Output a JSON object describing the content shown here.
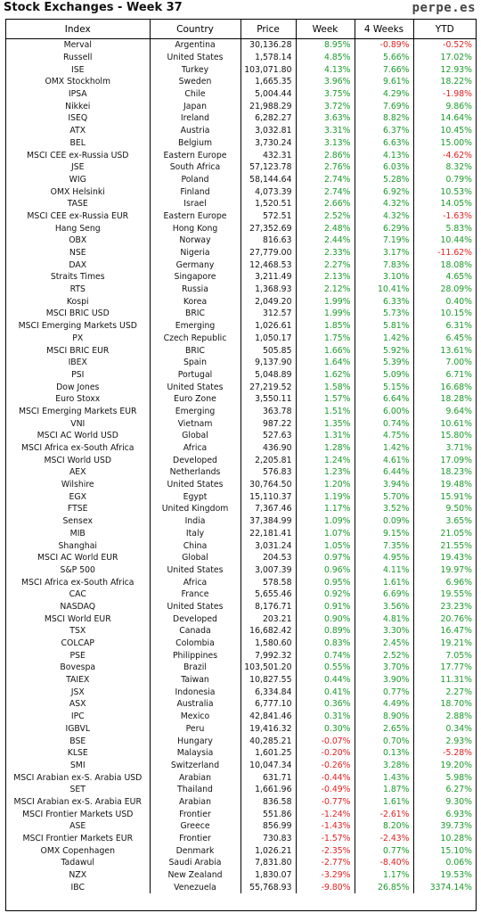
{
  "header": {
    "title": "Stock Exchanges - Week 37",
    "brand": "perpe.es"
  },
  "colors": {
    "positive": "#1a9b2a",
    "negative": "#e02020"
  },
  "table": {
    "columns": [
      "Index",
      "Country",
      "Price",
      "Week",
      "4 Weeks",
      "YTD"
    ],
    "rows": [
      [
        "Merval",
        "Argentina",
        "30,136.28",
        "8.95%",
        "-0.89%",
        "-0.52%"
      ],
      [
        "Russell",
        "United States",
        "1,578.14",
        "4.85%",
        "5.66%",
        "17.02%"
      ],
      [
        "ISE",
        "Turkey",
        "103,071.80",
        "4.13%",
        "7.66%",
        "12.93%"
      ],
      [
        "OMX Stockholm",
        "Sweden",
        "1,665.35",
        "3.96%",
        "9.61%",
        "18.22%"
      ],
      [
        "IPSA",
        "Chile",
        "5,004.44",
        "3.75%",
        "4.29%",
        "-1.98%"
      ],
      [
        "Nikkei",
        "Japan",
        "21,988.29",
        "3.72%",
        "7.69%",
        "9.86%"
      ],
      [
        "ISEQ",
        "Ireland",
        "6,282.27",
        "3.63%",
        "8.82%",
        "14.64%"
      ],
      [
        "ATX",
        "Austria",
        "3,032.81",
        "3.31%",
        "6.37%",
        "10.45%"
      ],
      [
        "BEL",
        "Belgium",
        "3,730.24",
        "3.13%",
        "6.63%",
        "15.00%"
      ],
      [
        "MSCI CEE ex-Russia USD",
        "Eastern Europe",
        "432.31",
        "2.86%",
        "4.13%",
        "-4.62%"
      ],
      [
        "JSE",
        "South Africa",
        "57,123.78",
        "2.76%",
        "6.03%",
        "8.32%"
      ],
      [
        "WIG",
        "Poland",
        "58,144.64",
        "2.74%",
        "5.28%",
        "0.79%"
      ],
      [
        "OMX Helsinki",
        "Finland",
        "4,073.39",
        "2.74%",
        "6.92%",
        "10.53%"
      ],
      [
        "TASE",
        "Israel",
        "1,520.51",
        "2.66%",
        "4.32%",
        "14.05%"
      ],
      [
        "MSCI CEE ex-Russia EUR",
        "Eastern Europe",
        "572.51",
        "2.52%",
        "4.32%",
        "-1.63%"
      ],
      [
        "Hang Seng",
        "Hong Kong",
        "27,352.69",
        "2.48%",
        "6.29%",
        "5.83%"
      ],
      [
        "OBX",
        "Norway",
        "816.63",
        "2.44%",
        "7.19%",
        "10.44%"
      ],
      [
        "NSE",
        "Nigeria",
        "27,779.00",
        "2.33%",
        "3.17%",
        "-11.62%"
      ],
      [
        "DAX",
        "Germany",
        "12,468.53",
        "2.27%",
        "7.83%",
        "18.08%"
      ],
      [
        "Straits Times",
        "Singapore",
        "3,211.49",
        "2.13%",
        "3.10%",
        "4.65%"
      ],
      [
        "RTS",
        "Russia",
        "1,368.93",
        "2.12%",
        "10.41%",
        "28.09%"
      ],
      [
        "Kospi",
        "Korea",
        "2,049.20",
        "1.99%",
        "6.33%",
        "0.40%"
      ],
      [
        "MSCI BRIC USD",
        "BRIC",
        "312.57",
        "1.99%",
        "5.73%",
        "10.15%"
      ],
      [
        "MSCI Emerging Markets USD",
        "Emerging",
        "1,026.61",
        "1.85%",
        "5.81%",
        "6.31%"
      ],
      [
        "PX",
        "Czech Republic",
        "1,050.17",
        "1.75%",
        "1.42%",
        "6.45%"
      ],
      [
        "MSCI BRIC EUR",
        "BRIC",
        "505.85",
        "1.66%",
        "5.92%",
        "13.61%"
      ],
      [
        "IBEX",
        "Spain",
        "9,137.90",
        "1.64%",
        "5.39%",
        "7.00%"
      ],
      [
        "PSI",
        "Portugal",
        "5,048.89",
        "1.62%",
        "5.09%",
        "6.71%"
      ],
      [
        "Dow Jones",
        "United States",
        "27,219.52",
        "1.58%",
        "5.15%",
        "16.68%"
      ],
      [
        "Euro Stoxx",
        "Euro Zone",
        "3,550.11",
        "1.57%",
        "6.64%",
        "18.28%"
      ],
      [
        "MSCI Emerging Markets EUR",
        "Emerging",
        "363.78",
        "1.51%",
        "6.00%",
        "9.64%"
      ],
      [
        "VNI",
        "Vietnam",
        "987.22",
        "1.35%",
        "0.74%",
        "10.61%"
      ],
      [
        "MSCI AC World USD",
        "Global",
        "527.63",
        "1.31%",
        "4.75%",
        "15.80%"
      ],
      [
        "MSCI Africa ex-South Africa",
        "Africa",
        "436.90",
        "1.28%",
        "1.42%",
        "3.71%"
      ],
      [
        "MSCI World USD",
        "Developed",
        "2,205.81",
        "1.24%",
        "4.61%",
        "17.09%"
      ],
      [
        "AEX",
        "Netherlands",
        "576.83",
        "1.23%",
        "6.44%",
        "18.23%"
      ],
      [
        "Wilshire",
        "United States",
        "30,764.50",
        "1.20%",
        "3.94%",
        "19.48%"
      ],
      [
        "EGX",
        "Egypt",
        "15,110.37",
        "1.19%",
        "5.70%",
        "15.91%"
      ],
      [
        "FTSE",
        "United Kingdom",
        "7,367.46",
        "1.17%",
        "3.52%",
        "9.50%"
      ],
      [
        "Sensex",
        "India",
        "37,384.99",
        "1.09%",
        "0.09%",
        "3.65%"
      ],
      [
        "MIB",
        "Italy",
        "22,181.41",
        "1.07%",
        "9.15%",
        "21.05%"
      ],
      [
        "Shanghai",
        "China",
        "3,031.24",
        "1.05%",
        "7.35%",
        "21.55%"
      ],
      [
        "MSCI AC World EUR",
        "Global",
        "204.53",
        "0.97%",
        "4.95%",
        "19.43%"
      ],
      [
        "S&P 500",
        "United States",
        "3,007.39",
        "0.96%",
        "4.11%",
        "19.97%"
      ],
      [
        "MSCI Africa ex-South Africa",
        "Africa",
        "578.58",
        "0.95%",
        "1.61%",
        "6.96%"
      ],
      [
        "CAC",
        "France",
        "5,655.46",
        "0.92%",
        "6.69%",
        "19.55%"
      ],
      [
        "NASDAQ",
        "United States",
        "8,176.71",
        "0.91%",
        "3.56%",
        "23.23%"
      ],
      [
        "MSCI World EUR",
        "Developed",
        "203.21",
        "0.90%",
        "4.81%",
        "20.76%"
      ],
      [
        "TSX",
        "Canada",
        "16,682.42",
        "0.89%",
        "3.30%",
        "16.47%"
      ],
      [
        "COLCAP",
        "Colombia",
        "1,580.60",
        "0.83%",
        "2.45%",
        "19.21%"
      ],
      [
        "PSE",
        "Philippines",
        "7,992.32",
        "0.74%",
        "2.52%",
        "7.05%"
      ],
      [
        "Bovespa",
        "Brazil",
        "103,501.20",
        "0.55%",
        "3.70%",
        "17.77%"
      ],
      [
        "TAIEX",
        "Taiwan",
        "10,827.55",
        "0.44%",
        "3.90%",
        "11.31%"
      ],
      [
        "JSX",
        "Indonesia",
        "6,334.84",
        "0.41%",
        "0.77%",
        "2.27%"
      ],
      [
        "ASX",
        "Australia",
        "6,777.10",
        "0.36%",
        "4.49%",
        "18.70%"
      ],
      [
        "IPC",
        "Mexico",
        "42,841.46",
        "0.31%",
        "8.90%",
        "2.88%"
      ],
      [
        "IGBVL",
        "Peru",
        "19,416.32",
        "0.30%",
        "2.65%",
        "0.34%"
      ],
      [
        "BSE",
        "Hungary",
        "40,285.21",
        "-0.07%",
        "0.70%",
        "2.93%"
      ],
      [
        "KLSE",
        "Malaysia",
        "1,601.25",
        "-0.20%",
        "0.13%",
        "-5.28%"
      ],
      [
        "SMI",
        "Switzerland",
        "10,047.34",
        "-0.26%",
        "3.28%",
        "19.20%"
      ],
      [
        "MSCI Arabian ex-S. Arabia USD",
        "Arabian",
        "631.71",
        "-0.44%",
        "1.43%",
        "5.98%"
      ],
      [
        "SET",
        "Thailand",
        "1,661.96",
        "-0.49%",
        "1.87%",
        "6.27%"
      ],
      [
        "MSCI Arabian ex-S. Arabia EUR",
        "Arabian",
        "836.58",
        "-0.77%",
        "1.61%",
        "9.30%"
      ],
      [
        "MSCI Frontier Markets USD",
        "Frontier",
        "551.86",
        "-1.24%",
        "-2.61%",
        "6.93%"
      ],
      [
        "ASE",
        "Greece",
        "856.99",
        "-1.43%",
        "8.20%",
        "39.73%"
      ],
      [
        "MSCI Frontier Markets EUR",
        "Frontier",
        "730.83",
        "-1.57%",
        "-2.43%",
        "10.28%"
      ],
      [
        "OMX Copenhagen",
        "Denmark",
        "1,026.21",
        "-2.35%",
        "0.77%",
        "15.10%"
      ],
      [
        "Tadawul",
        "Saudi Arabia",
        "7,831.80",
        "-2.77%",
        "-8.40%",
        "0.06%"
      ],
      [
        "NZX",
        "New Zealand",
        "1,830.07",
        "-3.29%",
        "1.17%",
        "19.53%"
      ],
      [
        "IBC",
        "Venezuela",
        "55,768.93",
        "-9.80%",
        "26.85%",
        "3374.14%"
      ]
    ]
  }
}
